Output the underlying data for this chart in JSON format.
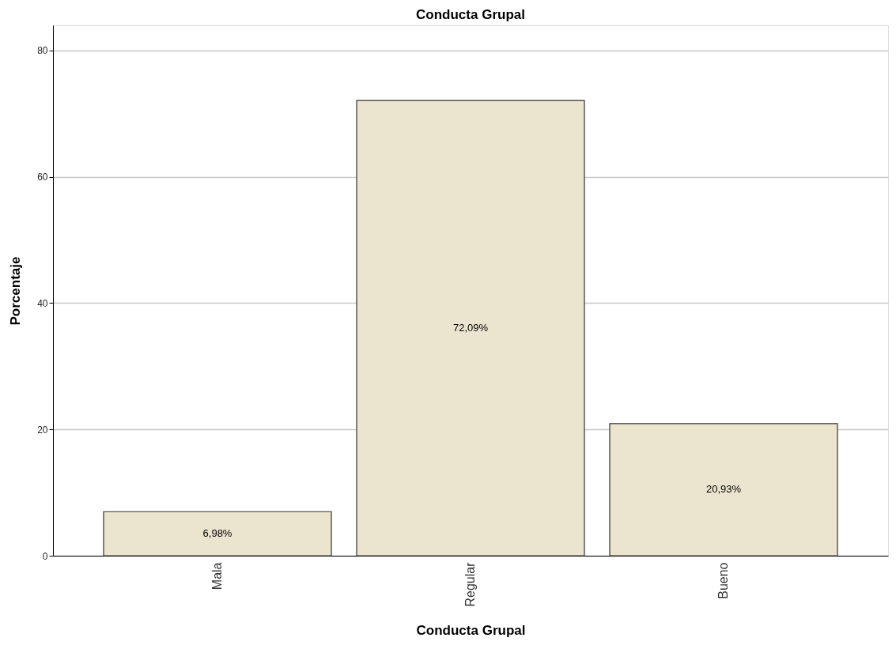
{
  "chart_data": {
    "type": "bar",
    "title": "Conducta Grupal",
    "xlabel": "Conducta Grupal",
    "ylabel": "Porcentaje",
    "categories": [
      "Mala",
      "Regular",
      "Bueno"
    ],
    "values": [
      6.98,
      72.09,
      20.93
    ],
    "value_labels": [
      "6,98%",
      "72,09%",
      "20,93%"
    ],
    "color": "#ebe4cf",
    "ylim": [
      0,
      84
    ],
    "yticks": [
      0,
      20,
      40,
      60,
      80
    ],
    "grid": "y"
  }
}
